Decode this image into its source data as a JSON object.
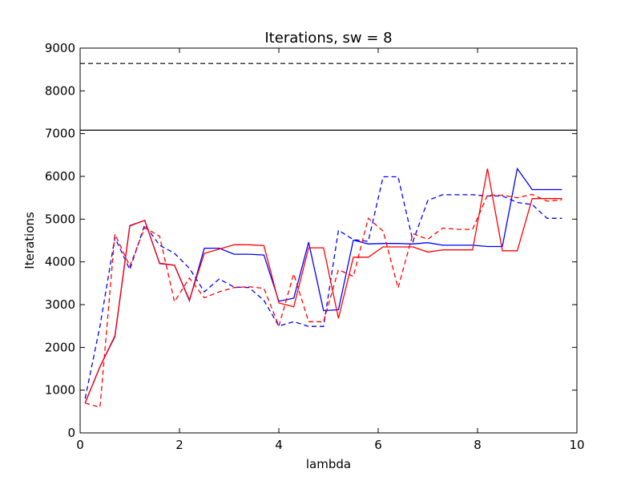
{
  "chart_data": {
    "type": "line",
    "title": "Iterations, sw = 8",
    "xlabel": "lambda",
    "ylabel": "Iterations",
    "xlim": [
      0,
      10
    ],
    "ylim": [
      0,
      9000
    ],
    "xticks": [
      0,
      2,
      4,
      6,
      8,
      10
    ],
    "yticks": [
      0,
      1000,
      2000,
      3000,
      4000,
      5000,
      6000,
      7000,
      8000,
      9000
    ],
    "grid": false,
    "reference_lines": [
      {
        "y": 8640,
        "color": "#000000",
        "style": "dashed"
      },
      {
        "y": 7080,
        "color": "#000000",
        "style": "solid"
      }
    ],
    "series": [
      {
        "color": "#0000ff",
        "style": "solid",
        "x": [
          0.1,
          0.4,
          0.7,
          1.0,
          1.3,
          1.6,
          1.9,
          2.2,
          2.5,
          2.8,
          3.1,
          3.4,
          3.7,
          4.0,
          4.3,
          4.6,
          4.9,
          5.2,
          5.5,
          5.8,
          6.1,
          6.4,
          6.7,
          7.0,
          7.3,
          7.6,
          7.9,
          8.2,
          8.5,
          8.8,
          9.1,
          9.4,
          9.7
        ],
        "values": [
          700,
          1550,
          2250,
          4850,
          4970,
          3960,
          3920,
          3090,
          4320,
          4320,
          4180,
          4180,
          4160,
          3080,
          3150,
          4460,
          2860,
          2880,
          4510,
          4420,
          4430,
          4430,
          4420,
          4450,
          4390,
          4390,
          4390,
          4360,
          4360,
          6180,
          5690,
          5690,
          5690
        ]
      },
      {
        "color": "#0000ff",
        "style": "dashed",
        "x": [
          0.1,
          0.4,
          0.7,
          1.0,
          1.3,
          1.6,
          1.9,
          2.2,
          2.5,
          2.8,
          3.1,
          3.4,
          3.7,
          4.0,
          4.3,
          4.6,
          4.9,
          5.2,
          5.5,
          5.8,
          6.1,
          6.4,
          6.7,
          7.0,
          7.3,
          7.6,
          7.9,
          8.2,
          8.5,
          8.8,
          9.1,
          9.4,
          9.7
        ],
        "values": [
          800,
          2500,
          4570,
          3820,
          4870,
          4390,
          4200,
          3850,
          3300,
          3600,
          3410,
          3400,
          3100,
          2500,
          2600,
          2490,
          2490,
          4740,
          4520,
          4480,
          5990,
          5990,
          4480,
          5440,
          5570,
          5570,
          5570,
          5540,
          5540,
          5390,
          5340,
          5020,
          5020
        ]
      },
      {
        "color": "#ff0000",
        "style": "solid",
        "x": [
          0.1,
          0.4,
          0.7,
          1.0,
          1.3,
          1.6,
          1.9,
          2.2,
          2.5,
          2.8,
          3.1,
          3.4,
          3.7,
          4.0,
          4.3,
          4.6,
          4.9,
          5.2,
          5.5,
          5.8,
          6.1,
          6.4,
          6.7,
          7.0,
          7.3,
          7.6,
          7.9,
          8.2,
          8.5,
          8.8,
          9.1,
          9.4,
          9.7
        ],
        "values": [
          700,
          1550,
          2270,
          4840,
          4970,
          3970,
          3920,
          3110,
          4200,
          4300,
          4400,
          4400,
          4380,
          3040,
          2950,
          4330,
          4330,
          2680,
          4110,
          4110,
          4350,
          4350,
          4350,
          4230,
          4280,
          4280,
          4280,
          6180,
          4260,
          4260,
          5480,
          5480,
          5480
        ]
      },
      {
        "color": "#ff0000",
        "style": "dashed",
        "x": [
          0.1,
          0.4,
          0.7,
          1.0,
          1.3,
          1.6,
          1.9,
          2.2,
          2.5,
          2.8,
          3.1,
          3.4,
          3.7,
          4.0,
          4.3,
          4.6,
          4.9,
          5.2,
          5.5,
          5.8,
          6.1,
          6.4,
          6.7,
          7.0,
          7.3,
          7.6,
          7.9,
          8.2,
          8.5,
          8.8,
          9.1,
          9.4,
          9.7
        ],
        "values": [
          700,
          600,
          4650,
          3900,
          4800,
          4600,
          3070,
          3620,
          3160,
          3300,
          3400,
          3420,
          3380,
          2500,
          3720,
          2600,
          2600,
          3820,
          3660,
          5020,
          4720,
          3390,
          4660,
          4530,
          4790,
          4760,
          4760,
          5560,
          5560,
          5500,
          5580,
          5420,
          5450
        ]
      }
    ]
  }
}
